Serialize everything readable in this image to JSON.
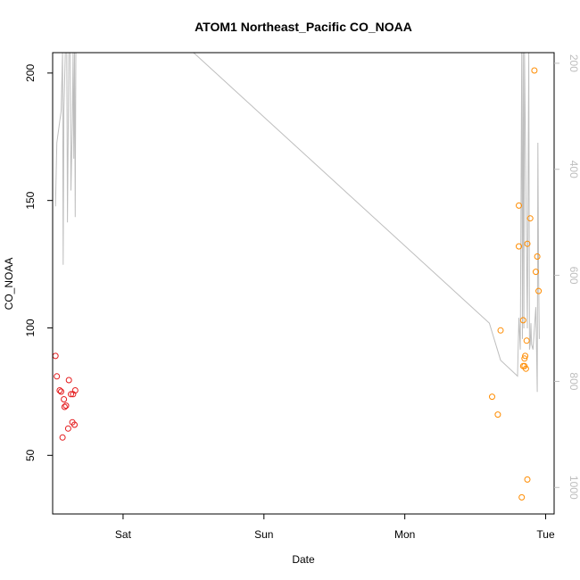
{
  "chart_data": {
    "type": "scatter",
    "title": "ATOM1 Northeast_Pacific CO_NOAA",
    "xlabel": "Date",
    "ylabel": "CO_NOAA",
    "x_ticks": [
      {
        "label": "Sat",
        "value": 1.0
      },
      {
        "label": "Sun",
        "value": 2.0
      },
      {
        "label": "Mon",
        "value": 3.0
      },
      {
        "label": "Tue",
        "value": 4.0
      }
    ],
    "y_ticks": [
      50,
      100,
      150,
      200
    ],
    "y2_ticks": [
      200,
      400,
      600,
      800,
      1000
    ],
    "xlim": [
      0.5,
      4.06
    ],
    "ylim": [
      27,
      208
    ],
    "y2lim": [
      180,
      1050
    ],
    "y2_reversed": true,
    "colors": {
      "series_red": "#e41a1c",
      "series_orange": "#ff8c00",
      "pressure_line": "#bebebe",
      "axis": "#000000"
    },
    "series": [
      {
        "color": "#e41a1c",
        "points": [
          [
            0.52,
            89
          ],
          [
            0.53,
            81
          ],
          [
            0.55,
            75.5
          ],
          [
            0.56,
            75
          ],
          [
            0.57,
            57
          ],
          [
            0.58,
            72
          ],
          [
            0.585,
            69
          ],
          [
            0.595,
            69.5
          ],
          [
            0.61,
            60.5
          ],
          [
            0.615,
            79.5
          ],
          [
            0.63,
            74
          ],
          [
            0.64,
            63
          ],
          [
            0.645,
            74
          ],
          [
            0.655,
            62
          ],
          [
            0.66,
            75.5
          ]
        ]
      },
      {
        "color": "#ff8c00",
        "points": [
          [
            3.62,
            73
          ],
          [
            3.66,
            66
          ],
          [
            3.68,
            99
          ],
          [
            3.81,
            148
          ],
          [
            3.81,
            132
          ],
          [
            3.83,
            33.5
          ],
          [
            3.84,
            103
          ],
          [
            3.84,
            85
          ],
          [
            3.85,
            85
          ],
          [
            3.85,
            88
          ],
          [
            3.855,
            89
          ],
          [
            3.86,
            84
          ],
          [
            3.865,
            95
          ],
          [
            3.87,
            133
          ],
          [
            3.87,
            40.5
          ],
          [
            3.89,
            143
          ],
          [
            3.92,
            201
          ],
          [
            3.93,
            122
          ],
          [
            3.94,
            128
          ],
          [
            3.95,
            114.5
          ]
        ]
      }
    ],
    "secondary_line": {
      "name": "",
      "points": [
        [
          0.52,
          470
        ],
        [
          0.53,
          350
        ],
        [
          0.56,
          290
        ],
        [
          0.57,
          180
        ],
        [
          0.575,
          580
        ],
        [
          0.58,
          290
        ],
        [
          0.59,
          180
        ],
        [
          0.6,
          180
        ],
        [
          0.605,
          500
        ],
        [
          0.615,
          180
        ],
        [
          0.625,
          180
        ],
        [
          0.63,
          440
        ],
        [
          0.64,
          310
        ],
        [
          0.645,
          180
        ],
        [
          0.65,
          380
        ],
        [
          0.655,
          180
        ],
        [
          0.66,
          490
        ],
        [
          0.665,
          180
        ],
        [
          1.5,
          180
        ],
        [
          3.6,
          690
        ],
        [
          3.68,
          760
        ],
        [
          3.8,
          790
        ],
        [
          3.81,
          680
        ],
        [
          3.82,
          740
        ],
        [
          3.83,
          180
        ],
        [
          3.835,
          720
        ],
        [
          3.84,
          180
        ],
        [
          3.845,
          700
        ],
        [
          3.85,
          180
        ],
        [
          3.87,
          700
        ],
        [
          3.88,
          180
        ],
        [
          3.885,
          740
        ],
        [
          3.89,
          730
        ],
        [
          3.895,
          690
        ],
        [
          3.9,
          730
        ],
        [
          3.91,
          740
        ],
        [
          3.93,
          660
        ],
        [
          3.94,
          820
        ],
        [
          3.945,
          350
        ],
        [
          3.95,
          600
        ],
        [
          3.955,
          720
        ]
      ]
    }
  }
}
